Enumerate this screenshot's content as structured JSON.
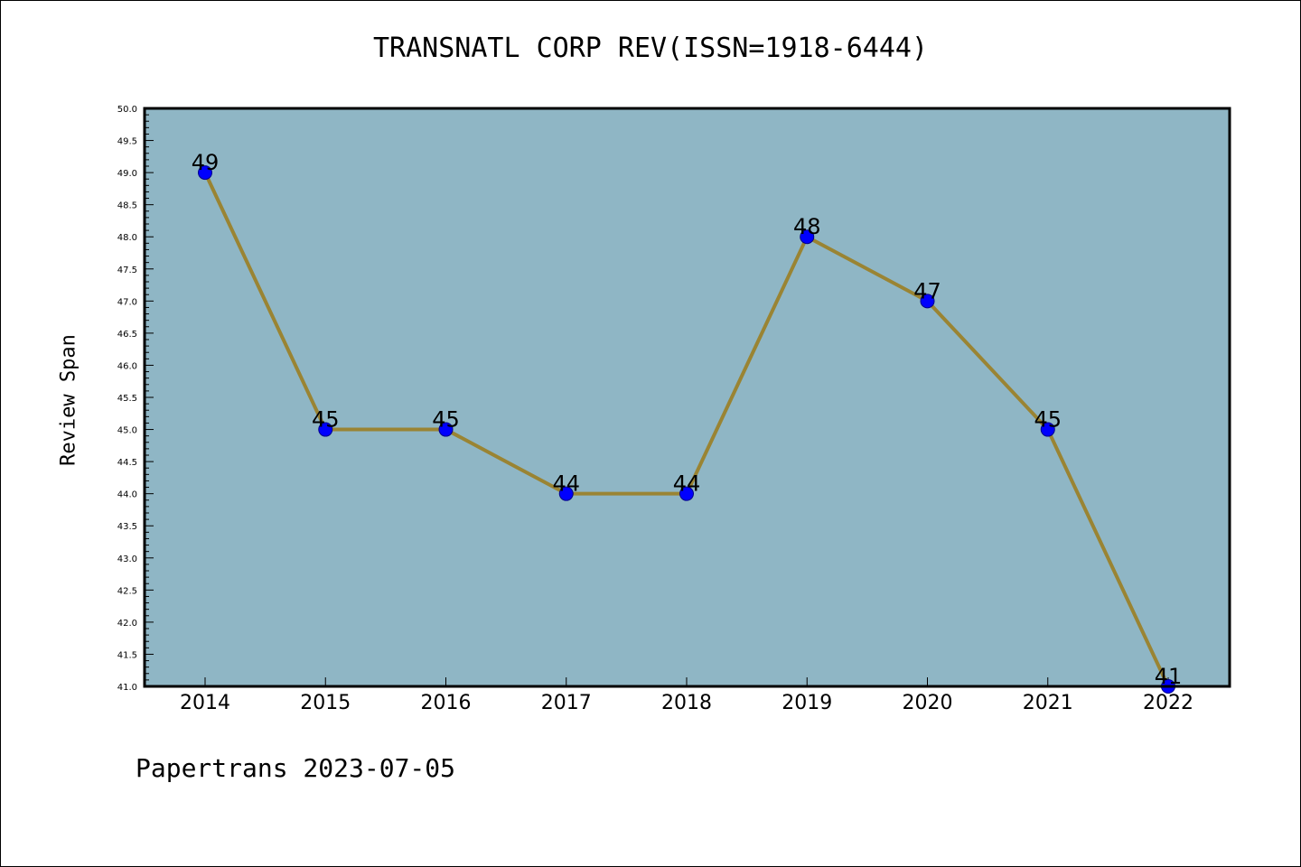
{
  "chart_data": {
    "type": "line",
    "title": "TRANSNATL CORP REV(ISSN=1918-6444)",
    "xlabel": "",
    "ylabel": "Review Span",
    "categories": [
      "2014",
      "2015",
      "2016",
      "2017",
      "2018",
      "2019",
      "2020",
      "2021",
      "2022"
    ],
    "values": [
      49,
      45,
      45,
      44,
      44,
      48,
      47,
      45,
      41
    ],
    "ylim": [
      41.0,
      50.0
    ],
    "yticks": [
      "41.0",
      "41.5",
      "42.0",
      "42.5",
      "43.0",
      "43.5",
      "44.0",
      "44.5",
      "45.0",
      "45.5",
      "46.0",
      "46.5",
      "47.0",
      "47.5",
      "48.0",
      "48.5",
      "49.0",
      "49.5",
      "50.0"
    ],
    "grid": false,
    "data_labels": true,
    "colors": {
      "plot_background": "#8fb6c5",
      "line": "#9a8433",
      "marker": "#0000ff",
      "marker_edge": "#00008b"
    }
  },
  "footer": {
    "stamp": "Papertrans 2023-07-05"
  }
}
